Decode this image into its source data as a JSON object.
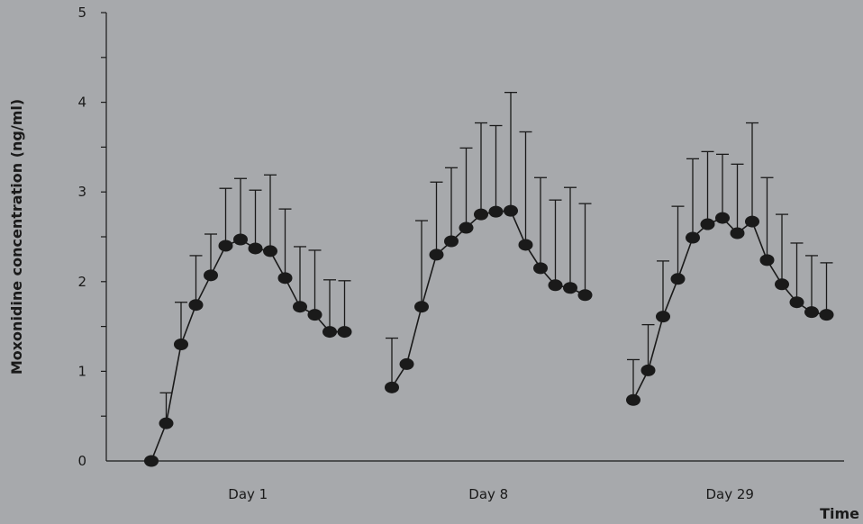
{
  "chart_data": {
    "type": "line",
    "ylabel": "Moxonidine concentration (ng/ml)",
    "xlabel": "Time",
    "ylim": [
      0,
      5
    ],
    "yticks": [
      0,
      1,
      2,
      3,
      4,
      5
    ],
    "groups": [
      "Day 1",
      "Day 8",
      "Day 29"
    ],
    "series": [
      {
        "group": "Day 1",
        "values": [
          0,
          0.42,
          1.3,
          1.74,
          2.07,
          2.4,
          2.47,
          2.37,
          2.34,
          2.04,
          1.72,
          1.63,
          1.44,
          1.44
        ],
        "error_upper": [
          null,
          0.76,
          1.77,
          2.29,
          2.53,
          3.04,
          3.15,
          3.02,
          3.19,
          2.81,
          2.39,
          2.35,
          2.02,
          2.01
        ]
      },
      {
        "group": "Day 8",
        "values": [
          0.82,
          1.08,
          1.72,
          2.3,
          2.45,
          2.6,
          2.75,
          2.78,
          2.79,
          2.41,
          2.15,
          1.96,
          1.93,
          1.85
        ],
        "error_upper": [
          1.37,
          null,
          2.68,
          3.11,
          3.27,
          3.49,
          3.77,
          3.74,
          4.11,
          3.67,
          3.16,
          2.91,
          3.05,
          2.87
        ]
      },
      {
        "group": "Day 29",
        "values": [
          0.68,
          1.01,
          1.61,
          2.03,
          2.49,
          2.64,
          2.71,
          2.54,
          2.67,
          2.24,
          1.97,
          1.77,
          1.66,
          1.63
        ],
        "error_upper": [
          1.13,
          1.52,
          2.23,
          2.84,
          3.37,
          3.45,
          3.42,
          3.31,
          3.77,
          3.16,
          2.75,
          2.43,
          2.29,
          2.21
        ]
      }
    ],
    "grid": false,
    "colors": {
      "background": "#a7a9ac",
      "ink": "#1a1a1a"
    }
  }
}
